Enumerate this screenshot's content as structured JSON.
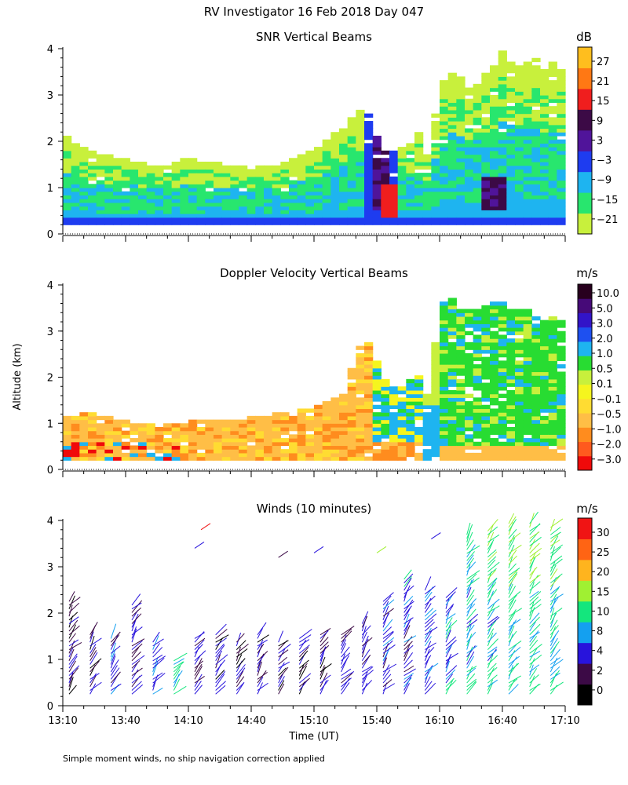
{
  "figure": {
    "title": "RV Investigator  16 Feb 2018 Day 047",
    "ylabel": "Altitude (km)",
    "xlabel": "Time (UT)",
    "footnote": "Simple moment winds, no ship navigation correction applied"
  },
  "colors": {
    "snr": [
      "#c8f03c",
      "#28e66e",
      "#1eb4f0",
      "#1e3cf0",
      "#50149a",
      "#3c0a46",
      "#f01e1e",
      "#ff7814",
      "#ffbe1e"
    ],
    "doppler": [
      "#f00a0a",
      "#ff5a1e",
      "#ff8c1e",
      "#ffbe46",
      "#ffdc32",
      "#f5f51e",
      "#c8f03c",
      "#28dc32",
      "#1eb4f0",
      "#1e50f0",
      "#3214c8",
      "#460a78",
      "#28001e"
    ],
    "winds": [
      "#000000",
      "#3c0a46",
      "#2814dc",
      "#14a0f0",
      "#14e67d",
      "#a0f032",
      "#ffb41e",
      "#ff6414",
      "#f01414"
    ]
  },
  "chart_data": [
    {
      "type": "heatmap",
      "title": "SNR Vertical Beams",
      "unit": "dB",
      "x_ticks": [
        "13:10",
        "13:40",
        "14:10",
        "14:40",
        "15:10",
        "15:40",
        "16:10",
        "16:40",
        "17:10"
      ],
      "xlim": [
        0,
        240
      ],
      "ylim": [
        0,
        4
      ],
      "y_ticks": [
        "0",
        "1",
        "2",
        "3",
        "4"
      ],
      "colorbar_labels": [
        "27",
        "21",
        "15",
        "9",
        "3",
        "−3",
        "−9",
        "−15",
        "−21"
      ],
      "colorbar_range": [
        -24,
        30
      ],
      "echo_top_profile": {
        "x": [
          0,
          15,
          30,
          45,
          60,
          75,
          90,
          105,
          120,
          135,
          140,
          145,
          150,
          155,
          160,
          165,
          170,
          175,
          180,
          185,
          190,
          195,
          200,
          205,
          210,
          215,
          220,
          225,
          230,
          235,
          240
        ],
        "y": [
          2.1,
          1.7,
          1.6,
          1.4,
          1.6,
          1.5,
          1.4,
          1.5,
          1.8,
          2.3,
          2.6,
          2.7,
          2.1,
          1.7,
          1.8,
          2.0,
          2.2,
          1.6,
          3.2,
          3.5,
          3.4,
          3.1,
          3.3,
          3.6,
          3.9,
          3.7,
          3.6,
          3.8,
          3.5,
          3.7,
          3.4
        ]
      },
      "strong_echo_cores": [
        {
          "x0": 145,
          "x1": 155,
          "y0": 0.5,
          "y1": 2.6,
          "peak_db": 12
        },
        {
          "x0": 152,
          "x1": 156,
          "y0": 0.3,
          "y1": 1.0,
          "peak_db": 20
        },
        {
          "x0": 198,
          "x1": 210,
          "y0": 0.5,
          "y1": 1.2,
          "peak_db": 10
        }
      ]
    },
    {
      "type": "heatmap",
      "title": "Doppler Velocity Vertical Beams",
      "unit": "m/s",
      "x_ticks": [
        "13:10",
        "13:40",
        "14:10",
        "14:40",
        "15:10",
        "15:40",
        "16:10",
        "16:40",
        "17:10"
      ],
      "xlim": [
        0,
        240
      ],
      "ylim": [
        0,
        4
      ],
      "y_ticks": [
        "0",
        "1",
        "2",
        "3",
        "4"
      ],
      "colorbar_labels": [
        "10.0",
        "5.0",
        "3.0",
        "2.0",
        "1.0",
        "0.5",
        "0.1",
        "−0.1",
        "−0.5",
        "−1.0",
        "−2.0",
        "−3.0"
      ],
      "echo_top_profile": {
        "x": [
          0,
          15,
          30,
          45,
          60,
          75,
          90,
          105,
          120,
          135,
          140,
          145,
          150,
          155,
          160,
          165,
          170,
          175,
          180,
          185,
          190,
          195,
          200,
          205,
          210,
          215,
          220,
          225,
          230,
          235,
          240
        ],
        "y": [
          1.1,
          1.2,
          1.0,
          0.9,
          1.0,
          1.0,
          1.1,
          1.2,
          1.3,
          1.6,
          2.5,
          2.8,
          2.3,
          1.8,
          1.7,
          1.9,
          2.1,
          1.5,
          3.6,
          3.7,
          3.5,
          3.4,
          3.5,
          3.6,
          3.6,
          3.4,
          3.5,
          3.3,
          3.2,
          3.3,
          3.2
        ]
      }
    },
    {
      "type": "scatter",
      "title": "Winds (10 minutes)",
      "unit": "m/s",
      "x_ticks": [
        "13:10",
        "13:40",
        "14:10",
        "14:40",
        "15:10",
        "15:40",
        "16:10",
        "16:40",
        "17:10"
      ],
      "xlim": [
        0,
        240
      ],
      "ylim": [
        0,
        4
      ],
      "y_ticks": [
        "0",
        "1",
        "2",
        "3",
        "4"
      ],
      "colorbar_labels": [
        "30",
        "25",
        "20",
        "15",
        "10",
        "8",
        "4",
        "2",
        "0"
      ],
      "profiles": [
        {
          "x": 3,
          "top": 2.3,
          "speed": 3
        },
        {
          "x": 13,
          "top": 1.6,
          "speed": 4
        },
        {
          "x": 23,
          "top": 1.5,
          "speed": 6
        },
        {
          "x": 33,
          "top": 2.2,
          "speed": 5
        },
        {
          "x": 43,
          "top": 1.4,
          "speed": 8
        },
        {
          "x": 53,
          "top": 1.0,
          "speed": 12
        },
        {
          "x": 63,
          "top": 1.5,
          "speed": 5
        },
        {
          "x": 73,
          "top": 1.6,
          "speed": 4
        },
        {
          "x": 83,
          "top": 1.4,
          "speed": 3
        },
        {
          "x": 93,
          "top": 1.6,
          "speed": 4
        },
        {
          "x": 103,
          "top": 1.4,
          "speed": 4
        },
        {
          "x": 113,
          "top": 1.5,
          "speed": 4
        },
        {
          "x": 123,
          "top": 1.6,
          "speed": 4
        },
        {
          "x": 133,
          "top": 1.6,
          "speed": 5
        },
        {
          "x": 143,
          "top": 1.8,
          "speed": 5
        },
        {
          "x": 153,
          "top": 2.3,
          "speed": 6
        },
        {
          "x": 163,
          "top": 2.8,
          "speed": 6
        },
        {
          "x": 173,
          "top": 2.5,
          "speed": 7
        },
        {
          "x": 183,
          "top": 2.4,
          "speed": 8
        },
        {
          "x": 193,
          "top": 3.7,
          "speed": 9
        },
        {
          "x": 203,
          "top": 3.8,
          "speed": 10
        },
        {
          "x": 213,
          "top": 4.0,
          "speed": 11
        },
        {
          "x": 223,
          "top": 4.0,
          "speed": 12
        },
        {
          "x": 233,
          "top": 3.9,
          "speed": 11
        }
      ]
    }
  ]
}
